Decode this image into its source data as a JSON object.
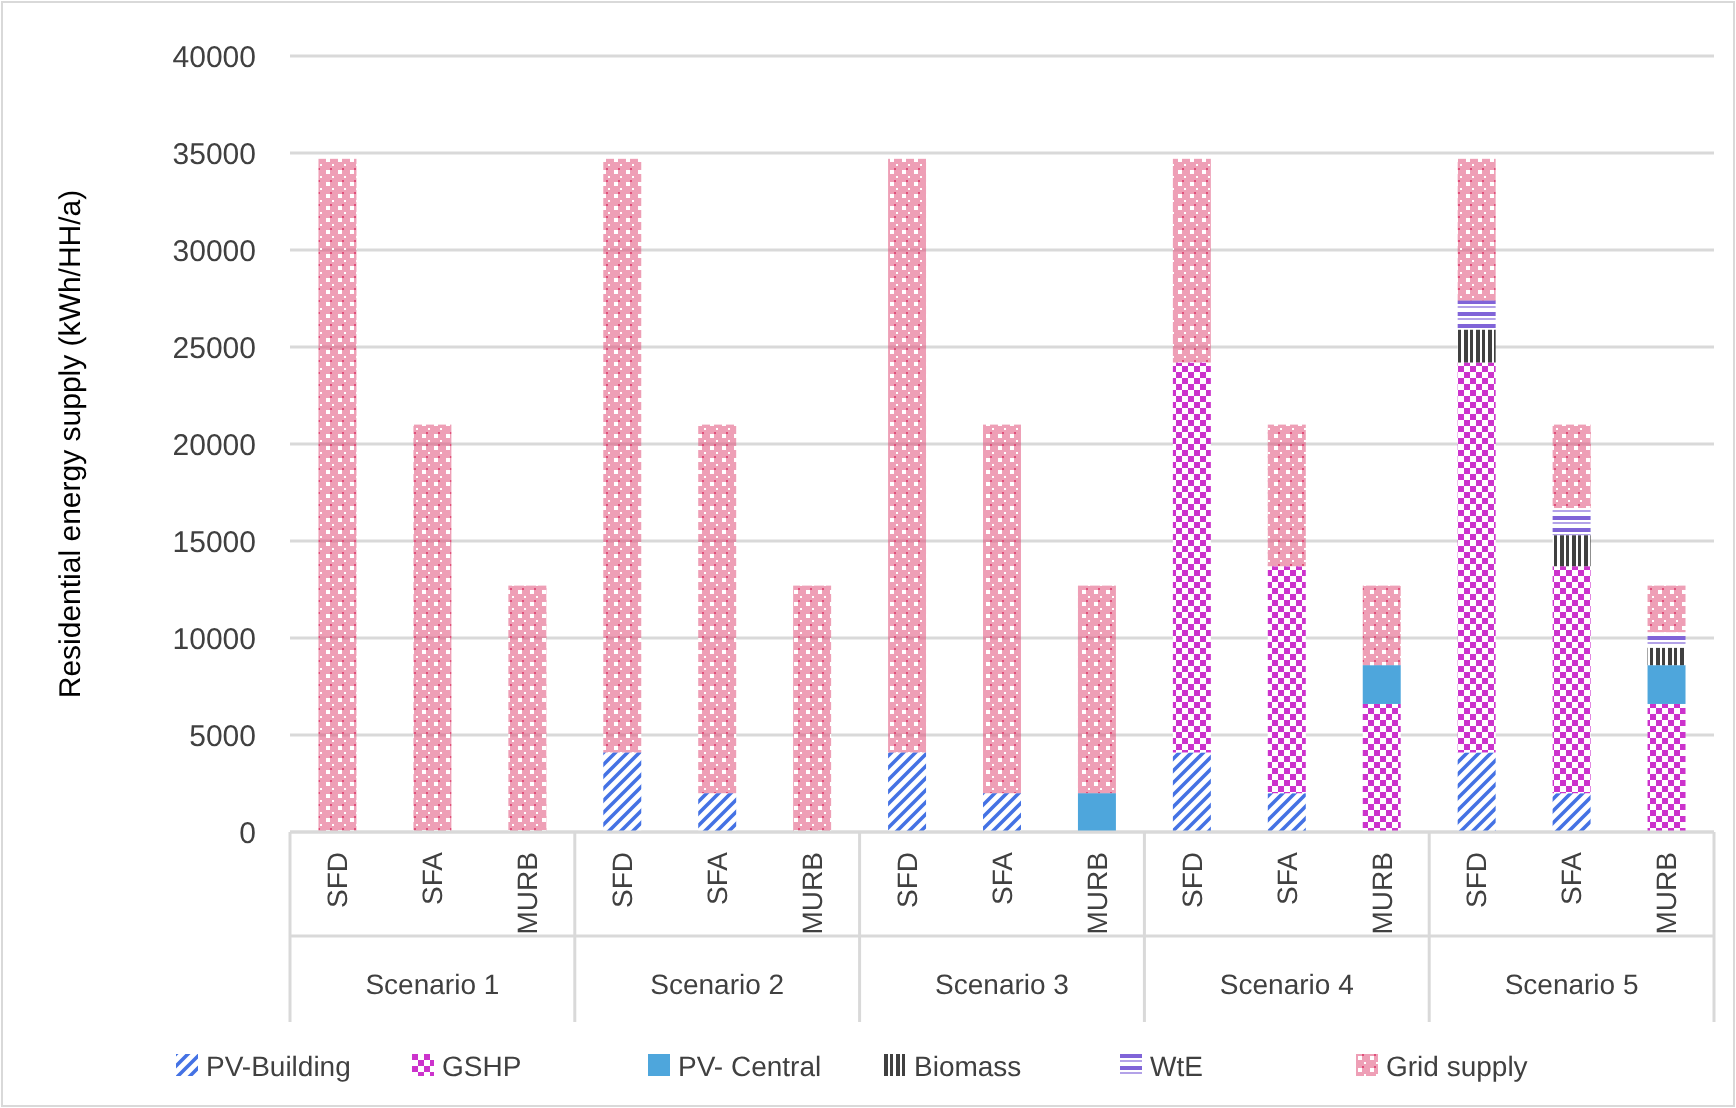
{
  "chart_data": {
    "type": "bar",
    "stacked": true,
    "ylabel": "Residential energy supply (kWh/HH/a)",
    "categories": [
      "SFD",
      "SFA",
      "MURB",
      "SFD",
      "SFA",
      "MURB",
      "SFD",
      "SFA",
      "MURB",
      "SFD",
      "SFA",
      "MURB",
      "SFD",
      "SFA",
      "MURB"
    ],
    "annotations": [
      "Scenario 1",
      "Scenario 2",
      "Scenario 3",
      "Scenario 4",
      "Scenario 5"
    ],
    "series": [
      {
        "name": "PV-Building",
        "color": "#4472e4",
        "values": [
          0,
          0,
          0,
          4100,
          2000,
          0,
          4100,
          2000,
          0,
          4100,
          2000,
          0,
          4100,
          2000,
          0
        ]
      },
      {
        "name": "GSHP",
        "color": "#cc33cc",
        "values": [
          0,
          0,
          0,
          0,
          0,
          0,
          0,
          0,
          0,
          20100,
          11700,
          6600,
          20100,
          11700,
          6600
        ]
      },
      {
        "name": "PV- Central",
        "color": "#4ea6dc",
        "values": [
          0,
          0,
          0,
          0,
          0,
          0,
          0,
          0,
          2000,
          0,
          0,
          2000,
          0,
          0,
          2000
        ]
      },
      {
        "name": "Biomass",
        "color": "#404040",
        "values": [
          0,
          0,
          0,
          0,
          0,
          0,
          0,
          0,
          0,
          0,
          0,
          0,
          1700,
          1600,
          900
        ]
      },
      {
        "name": "WtE",
        "color": "#8064d8",
        "values": [
          0,
          0,
          0,
          0,
          0,
          0,
          0,
          0,
          0,
          0,
          0,
          0,
          1500,
          1400,
          800
        ]
      },
      {
        "name": "Grid supply",
        "color": "#e0507a",
        "values": [
          34700,
          21000,
          12700,
          30600,
          19000,
          12700,
          30600,
          19000,
          10700,
          10500,
          7300,
          4100,
          7300,
          4300,
          2400
        ]
      }
    ],
    "ylim": [
      0,
      40000
    ],
    "yticks": [
      0,
      5000,
      10000,
      15000,
      20000,
      25000,
      30000,
      35000,
      40000
    ],
    "grid": "y",
    "legend": "bottom"
  }
}
